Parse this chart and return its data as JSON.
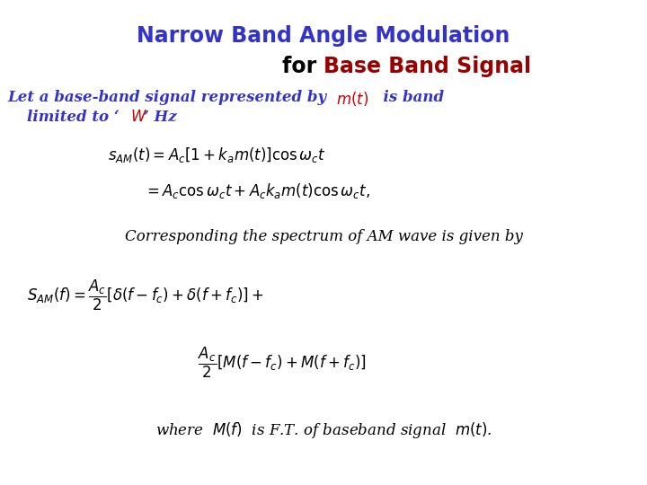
{
  "title1": "Narrow Band Angle Modulation",
  "title2_black": "for ",
  "title2_red": "Base Band Signal",
  "title_color": "#3333cc",
  "title2_black_color": "#000000",
  "title_red_color": "#990000",
  "body_blue_color": "#3333cc",
  "text_color": "#000000",
  "italic_red_color": "#cc0000",
  "bg_color": "#ffffff",
  "title_fontsize": 17,
  "body_fontsize": 12,
  "eq_fontsize": 11
}
